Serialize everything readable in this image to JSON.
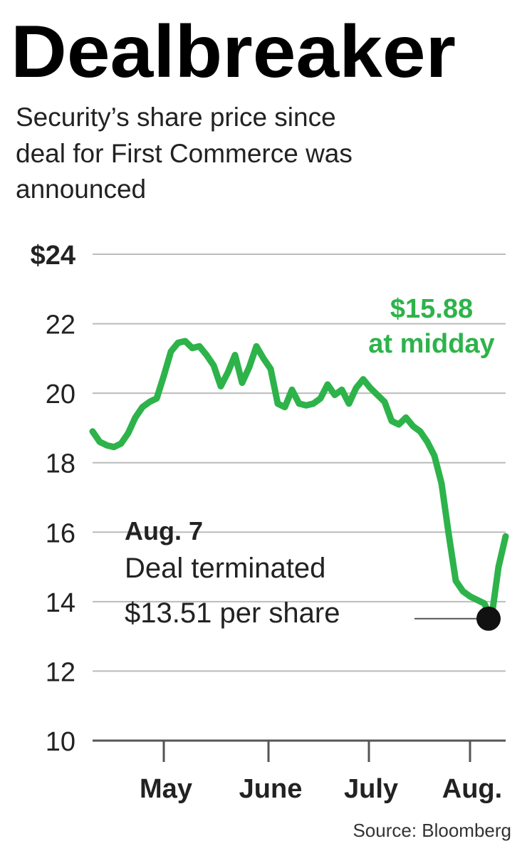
{
  "chart_data": {
    "type": "line",
    "title": "Dealbreaker",
    "subtitle": [
      "Security’s share price since",
      "deal for First Commerce was",
      "announced"
    ],
    "series": [
      {
        "name": "Security share price",
        "color": "#2db34a",
        "values": [
          18.9,
          18.6,
          18.5,
          18.45,
          18.55,
          18.85,
          19.3,
          19.6,
          19.75,
          19.85,
          20.5,
          21.2,
          21.45,
          21.5,
          21.3,
          21.35,
          21.1,
          20.8,
          20.2,
          20.6,
          21.1,
          20.3,
          20.75,
          21.35,
          21.0,
          20.7,
          19.7,
          19.6,
          20.1,
          19.7,
          19.65,
          19.7,
          19.85,
          20.25,
          19.95,
          20.1,
          19.7,
          20.15,
          20.4,
          20.15,
          19.95,
          19.75,
          19.2,
          19.1,
          19.3,
          19.05,
          18.9,
          18.6,
          18.2,
          17.4,
          15.95,
          14.6,
          14.3,
          14.15,
          14.05,
          13.95,
          13.51,
          15.0,
          15.88
        ]
      }
    ],
    "xlim": [
      0,
      58
    ],
    "xticks": [
      {
        "value": 10,
        "label": "May"
      },
      {
        "value": 24.7,
        "label": "June"
      },
      {
        "value": 38.8,
        "label": "July"
      },
      {
        "value": 53,
        "label": "Aug."
      }
    ],
    "ylim": [
      10,
      24
    ],
    "yticks": [
      {
        "value": 24,
        "label": "$24"
      },
      22,
      20,
      18,
      16,
      14,
      12,
      10
    ],
    "grid": true,
    "annotations": {
      "end_price": [
        "$15.88",
        "at midday"
      ],
      "event": [
        "Aug. 7",
        "Deal terminated",
        "$13.51 per share"
      ]
    },
    "source": "Source: Bloomberg"
  }
}
